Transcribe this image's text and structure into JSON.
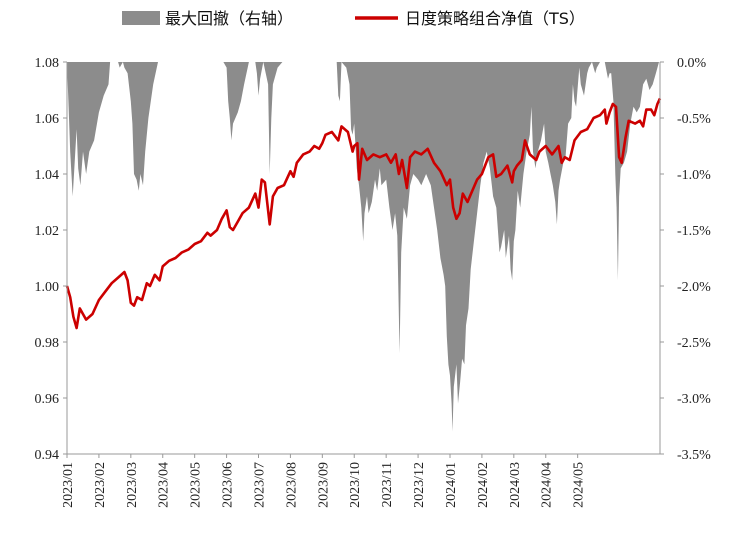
{
  "chart_data": {
    "type": "area+line",
    "legend": [
      {
        "label": "最大回撤（右轴）",
        "kind": "area",
        "color": "#8c8c8c"
      },
      {
        "label": "日度策略组合净值（TS）",
        "kind": "line",
        "color": "#cc0000"
      }
    ],
    "left_axis": {
      "ylim": [
        0.94,
        1.08
      ],
      "ticks": [
        "0.94",
        "0.96",
        "0.98",
        "1.00",
        "1.02",
        "1.04",
        "1.06",
        "1.08"
      ]
    },
    "right_axis": {
      "ylim": [
        -3.5,
        0.0
      ],
      "unit": "%",
      "ticks": [
        "0.0%",
        "-0.5%",
        "-1.0%",
        "-1.5%",
        "-2.0%",
        "-2.5%",
        "-3.0%",
        "-3.5%"
      ]
    },
    "x_labels": [
      "2023/01",
      "2023/02",
      "2023/03",
      "2023/04",
      "2023/05",
      "2023/06",
      "2023/07",
      "2023/08",
      "2023/09",
      "2023/10",
      "2023/11",
      "2023/12",
      "2024/01",
      "2024/02",
      "2024/03",
      "2024/04",
      "2024/05"
    ],
    "nav_series": {
      "name": "日度策略组合净值（TS）",
      "points": [
        [
          0.0,
          1.0
        ],
        [
          0.1,
          0.996
        ],
        [
          0.2,
          0.989
        ],
        [
          0.3,
          0.985
        ],
        [
          0.4,
          0.992
        ],
        [
          0.6,
          0.988
        ],
        [
          0.8,
          0.99
        ],
        [
          1.0,
          0.995
        ],
        [
          1.2,
          0.998
        ],
        [
          1.4,
          1.001
        ],
        [
          1.6,
          1.003
        ],
        [
          1.8,
          1.005
        ],
        [
          1.9,
          1.002
        ],
        [
          2.0,
          0.994
        ],
        [
          2.1,
          0.993
        ],
        [
          2.2,
          0.996
        ],
        [
          2.35,
          0.995
        ],
        [
          2.5,
          1.001
        ],
        [
          2.6,
          1.0
        ],
        [
          2.75,
          1.004
        ],
        [
          2.9,
          1.002
        ],
        [
          3.0,
          1.007
        ],
        [
          3.2,
          1.009
        ],
        [
          3.4,
          1.01
        ],
        [
          3.6,
          1.012
        ],
        [
          3.8,
          1.013
        ],
        [
          4.0,
          1.015
        ],
        [
          4.2,
          1.016
        ],
        [
          4.4,
          1.019
        ],
        [
          4.5,
          1.018
        ],
        [
          4.7,
          1.02
        ],
        [
          4.85,
          1.024
        ],
        [
          5.0,
          1.027
        ],
        [
          5.1,
          1.021
        ],
        [
          5.2,
          1.02
        ],
        [
          5.35,
          1.023
        ],
        [
          5.5,
          1.026
        ],
        [
          5.7,
          1.028
        ],
        [
          5.9,
          1.033
        ],
        [
          6.0,
          1.028
        ],
        [
          6.1,
          1.038
        ],
        [
          6.2,
          1.037
        ],
        [
          6.35,
          1.022
        ],
        [
          6.45,
          1.032
        ],
        [
          6.6,
          1.035
        ],
        [
          6.8,
          1.036
        ],
        [
          7.0,
          1.041
        ],
        [
          7.1,
          1.039
        ],
        [
          7.2,
          1.044
        ],
        [
          7.4,
          1.047
        ],
        [
          7.6,
          1.048
        ],
        [
          7.75,
          1.05
        ],
        [
          7.9,
          1.049
        ],
        [
          8.0,
          1.051
        ],
        [
          8.1,
          1.054
        ],
        [
          8.3,
          1.055
        ],
        [
          8.5,
          1.052
        ],
        [
          8.6,
          1.057
        ],
        [
          8.8,
          1.055
        ],
        [
          8.95,
          1.048
        ],
        [
          9.0,
          1.05
        ],
        [
          9.1,
          1.051
        ],
        [
          9.15,
          1.038
        ],
        [
          9.25,
          1.049
        ],
        [
          9.4,
          1.045
        ],
        [
          9.6,
          1.047
        ],
        [
          9.8,
          1.046
        ],
        [
          10.0,
          1.047
        ],
        [
          10.15,
          1.044
        ],
        [
          10.3,
          1.047
        ],
        [
          10.4,
          1.04
        ],
        [
          10.5,
          1.045
        ],
        [
          10.65,
          1.035
        ],
        [
          10.75,
          1.046
        ],
        [
          10.9,
          1.048
        ],
        [
          11.1,
          1.047
        ],
        [
          11.3,
          1.049
        ],
        [
          11.5,
          1.044
        ],
        [
          11.7,
          1.041
        ],
        [
          11.9,
          1.036
        ],
        [
          12.0,
          1.038
        ],
        [
          12.1,
          1.028
        ],
        [
          12.2,
          1.024
        ],
        [
          12.3,
          1.026
        ],
        [
          12.4,
          1.033
        ],
        [
          12.55,
          1.03
        ],
        [
          12.7,
          1.034
        ],
        [
          12.85,
          1.038
        ],
        [
          13.0,
          1.04
        ],
        [
          13.2,
          1.046
        ],
        [
          13.35,
          1.047
        ],
        [
          13.45,
          1.039
        ],
        [
          13.6,
          1.04
        ],
        [
          13.8,
          1.043
        ],
        [
          13.95,
          1.037
        ],
        [
          14.0,
          1.041
        ],
        [
          14.1,
          1.043
        ],
        [
          14.25,
          1.045
        ],
        [
          14.35,
          1.052
        ],
        [
          14.5,
          1.047
        ],
        [
          14.7,
          1.045
        ],
        [
          14.8,
          1.048
        ],
        [
          15.0,
          1.05
        ],
        [
          15.2,
          1.047
        ],
        [
          15.4,
          1.05
        ],
        [
          15.5,
          1.044
        ],
        [
          15.6,
          1.046
        ],
        [
          15.75,
          1.045
        ],
        [
          15.9,
          1.052
        ],
        [
          16.1,
          1.055
        ],
        [
          16.3,
          1.056
        ],
        [
          16.5,
          1.06
        ],
        [
          16.7,
          1.061
        ],
        [
          16.85,
          1.063
        ],
        [
          16.9,
          1.058
        ],
        [
          17.0,
          1.062
        ],
        [
          17.1,
          1.065
        ],
        [
          17.2,
          1.064
        ],
        [
          17.3,
          1.046
        ],
        [
          17.38,
          1.044
        ],
        [
          17.5,
          1.053
        ],
        [
          17.6,
          1.059
        ],
        [
          17.8,
          1.058
        ],
        [
          17.95,
          1.059
        ],
        [
          18.05,
          1.057
        ],
        [
          18.15,
          1.063
        ],
        [
          18.3,
          1.063
        ],
        [
          18.4,
          1.061
        ],
        [
          18.5,
          1.065
        ],
        [
          18.58,
          1.067
        ]
      ]
    },
    "drawdown_series": {
      "name": "最大回撤（右轴）",
      "unit": "%",
      "points": [
        [
          0.0,
          -0.02
        ],
        [
          0.05,
          -0.4
        ],
        [
          0.1,
          -0.8
        ],
        [
          0.18,
          -1.2
        ],
        [
          0.22,
          -1.0
        ],
        [
          0.3,
          -0.6
        ],
        [
          0.35,
          -0.95
        ],
        [
          0.42,
          -1.1
        ],
        [
          0.5,
          -0.8
        ],
        [
          0.6,
          -1.0
        ],
        [
          0.7,
          -0.8
        ],
        [
          0.85,
          -0.7
        ],
        [
          1.0,
          -0.45
        ],
        [
          1.15,
          -0.3
        ],
        [
          1.3,
          -0.2
        ],
        [
          1.35,
          0.0
        ],
        [
          1.6,
          0.0
        ],
        [
          1.65,
          -0.05
        ],
        [
          1.75,
          0.0
        ],
        [
          1.8,
          -0.05
        ],
        [
          1.9,
          -0.1
        ],
        [
          2.0,
          -0.35
        ],
        [
          2.05,
          -0.55
        ],
        [
          2.1,
          -1.0
        ],
        [
          2.18,
          -1.05
        ],
        [
          2.25,
          -1.15
        ],
        [
          2.3,
          -1.0
        ],
        [
          2.38,
          -1.1
        ],
        [
          2.45,
          -0.8
        ],
        [
          2.55,
          -0.5
        ],
        [
          2.7,
          -0.2
        ],
        [
          2.85,
          0.0
        ],
        [
          4.8,
          0.0
        ],
        [
          4.9,
          0.0
        ],
        [
          5.0,
          -0.05
        ],
        [
          5.05,
          -0.35
        ],
        [
          5.1,
          -0.5
        ],
        [
          5.15,
          -0.7
        ],
        [
          5.2,
          -0.55
        ],
        [
          5.35,
          -0.45
        ],
        [
          5.45,
          -0.35
        ],
        [
          5.55,
          -0.2
        ],
        [
          5.7,
          0.0
        ],
        [
          5.9,
          0.0
        ],
        [
          5.95,
          -0.1
        ],
        [
          6.0,
          -0.3
        ],
        [
          6.05,
          -0.15
        ],
        [
          6.15,
          0.0
        ],
        [
          6.3,
          -0.2
        ],
        [
          6.35,
          -1.0
        ],
        [
          6.4,
          -0.5
        ],
        [
          6.45,
          -0.2
        ],
        [
          6.6,
          -0.05
        ],
        [
          6.75,
          0.0
        ],
        [
          8.45,
          0.0
        ],
        [
          8.5,
          -0.3
        ],
        [
          8.55,
          -0.35
        ],
        [
          8.6,
          0.0
        ],
        [
          8.75,
          -0.05
        ],
        [
          8.85,
          -0.2
        ],
        [
          8.9,
          -0.6
        ],
        [
          8.95,
          -0.65
        ],
        [
          9.0,
          -0.55
        ],
        [
          9.08,
          -0.95
        ],
        [
          9.15,
          -1.1
        ],
        [
          9.22,
          -1.3
        ],
        [
          9.28,
          -1.6
        ],
        [
          9.32,
          -1.35
        ],
        [
          9.4,
          -1.2
        ],
        [
          9.45,
          -1.35
        ],
        [
          9.55,
          -1.25
        ],
        [
          9.65,
          -1.05
        ],
        [
          9.72,
          -1.15
        ],
        [
          9.8,
          -0.95
        ],
        [
          9.85,
          -1.1
        ],
        [
          10.0,
          -1.05
        ],
        [
          10.1,
          -1.3
        ],
        [
          10.2,
          -1.5
        ],
        [
          10.28,
          -1.35
        ],
        [
          10.35,
          -1.55
        ],
        [
          10.42,
          -2.6
        ],
        [
          10.47,
          -1.7
        ],
        [
          10.55,
          -1.3
        ],
        [
          10.65,
          -1.4
        ],
        [
          10.75,
          -1.1
        ],
        [
          10.85,
          -1.0
        ],
        [
          11.0,
          -1.05
        ],
        [
          11.1,
          -1.1
        ],
        [
          11.25,
          -1.0
        ],
        [
          11.4,
          -1.1
        ],
        [
          11.5,
          -1.3
        ],
        [
          11.6,
          -1.5
        ],
        [
          11.7,
          -1.75
        ],
        [
          11.8,
          -1.9
        ],
        [
          11.85,
          -2.0
        ],
        [
          11.9,
          -2.45
        ],
        [
          11.95,
          -2.7
        ],
        [
          12.0,
          -2.8
        ],
        [
          12.05,
          -3.05
        ],
        [
          12.08,
          -3.3
        ],
        [
          12.12,
          -2.9
        ],
        [
          12.2,
          -2.7
        ],
        [
          12.25,
          -3.05
        ],
        [
          12.32,
          -2.85
        ],
        [
          12.38,
          -2.65
        ],
        [
          12.45,
          -2.7
        ],
        [
          12.5,
          -2.35
        ],
        [
          12.58,
          -2.2
        ],
        [
          12.65,
          -1.85
        ],
        [
          12.75,
          -1.6
        ],
        [
          12.85,
          -1.35
        ],
        [
          12.95,
          -1.1
        ],
        [
          13.05,
          -0.9
        ],
        [
          13.15,
          -0.8
        ],
        [
          13.25,
          -0.95
        ],
        [
          13.35,
          -1.2
        ],
        [
          13.45,
          -1.3
        ],
        [
          13.5,
          -1.5
        ],
        [
          13.55,
          -1.7
        ],
        [
          13.6,
          -1.65
        ],
        [
          13.7,
          -1.5
        ],
        [
          13.75,
          -1.75
        ],
        [
          13.85,
          -1.55
        ],
        [
          13.9,
          -1.85
        ],
        [
          13.95,
          -1.95
        ],
        [
          14.0,
          -1.6
        ],
        [
          14.05,
          -1.5
        ],
        [
          14.12,
          -1.15
        ],
        [
          14.2,
          -1.3
        ],
        [
          14.3,
          -1.0
        ],
        [
          14.4,
          -0.8
        ],
        [
          14.5,
          -0.65
        ],
        [
          14.55,
          -0.4
        ],
        [
          14.6,
          -0.8
        ],
        [
          14.68,
          -0.95
        ],
        [
          14.75,
          -0.8
        ],
        [
          14.85,
          -0.7
        ],
        [
          14.95,
          -0.55
        ],
        [
          15.0,
          -0.8
        ],
        [
          15.08,
          -0.9
        ],
        [
          15.15,
          -1.0
        ],
        [
          15.22,
          -1.1
        ],
        [
          15.3,
          -1.25
        ],
        [
          15.35,
          -1.45
        ],
        [
          15.4,
          -1.15
        ],
        [
          15.45,
          -1.05
        ],
        [
          15.55,
          -0.9
        ],
        [
          15.62,
          -0.85
        ],
        [
          15.7,
          -0.55
        ],
        [
          15.8,
          -0.5
        ],
        [
          15.85,
          -0.2
        ],
        [
          15.9,
          -0.35
        ],
        [
          15.95,
          -0.4
        ],
        [
          16.05,
          -0.05
        ],
        [
          16.1,
          -0.2
        ],
        [
          16.2,
          -0.3
        ],
        [
          16.3,
          -0.1
        ],
        [
          16.35,
          -0.05
        ],
        [
          16.45,
          0.0
        ],
        [
          16.55,
          -0.1
        ],
        [
          16.6,
          -0.05
        ],
        [
          16.7,
          0.0
        ],
        [
          16.85,
          0.0
        ],
        [
          16.95,
          -0.15
        ],
        [
          17.0,
          -0.1
        ],
        [
          17.05,
          -0.1
        ],
        [
          17.12,
          -0.35
        ],
        [
          17.18,
          -1.0
        ],
        [
          17.22,
          -1.3
        ],
        [
          17.26,
          -1.95
        ],
        [
          17.3,
          -1.2
        ],
        [
          17.35,
          -0.95
        ],
        [
          17.45,
          -0.9
        ],
        [
          17.55,
          -0.8
        ],
        [
          17.65,
          -0.55
        ],
        [
          17.75,
          -0.4
        ],
        [
          17.85,
          -0.45
        ],
        [
          17.95,
          -0.4
        ],
        [
          18.05,
          -0.2
        ],
        [
          18.15,
          -0.15
        ],
        [
          18.25,
          -0.25
        ],
        [
          18.35,
          -0.2
        ],
        [
          18.45,
          -0.1
        ],
        [
          18.55,
          0.0
        ],
        [
          18.58,
          0.0
        ]
      ]
    }
  }
}
